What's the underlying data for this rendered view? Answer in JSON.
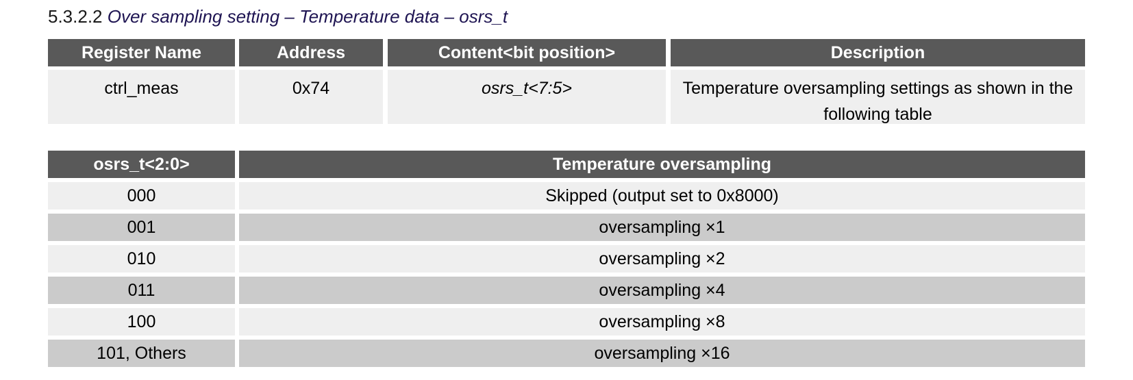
{
  "section": {
    "number": "5.3.2.2",
    "title": "Over sampling setting – Temperature data – osrs_t"
  },
  "register_table": {
    "headers": [
      "Register Name",
      "Address",
      "Content<bit position>",
      "Description"
    ],
    "row": {
      "register_name": "ctrl_meas",
      "address": "0x74",
      "content": "osrs_t<7:5>",
      "description": "Temperature oversampling settings as shown in the following table"
    }
  },
  "oversampling_table": {
    "headers": [
      "osrs_t<2:0>",
      "Temperature oversampling"
    ],
    "rows": [
      {
        "code": "000",
        "setting": "Skipped (output set to 0x8000)"
      },
      {
        "code": "001",
        "setting": "oversampling ×1"
      },
      {
        "code": "010",
        "setting": "oversampling ×2"
      },
      {
        "code": "011",
        "setting": "oversampling ×4"
      },
      {
        "code": "100",
        "setting": "oversampling ×8"
      },
      {
        "code": "101, Others",
        "setting": "oversampling ×16"
      }
    ]
  },
  "colors": {
    "header_bg": "#595959",
    "row_light": "#efefef",
    "row_dark": "#cbcbcb",
    "title_color": "#1e1452"
  }
}
